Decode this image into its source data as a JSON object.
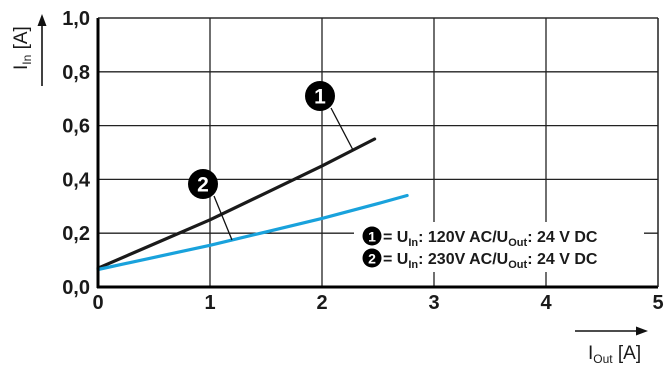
{
  "chart_data": {
    "type": "line",
    "xlim": [
      0,
      5
    ],
    "ylim": [
      0,
      1.0
    ],
    "x_ticks": [
      0,
      1,
      2,
      3,
      4,
      5
    ],
    "x_tick_labels": [
      "0",
      "1",
      "2",
      "3",
      "4",
      "5"
    ],
    "y_ticks": [
      0,
      0.2,
      0.4,
      0.6,
      0.8,
      1.0
    ],
    "y_tick_labels": [
      "0,0",
      "0,2",
      "0,4",
      "0,6",
      "0,8",
      "1,0"
    ],
    "grid": true,
    "xlabel": {
      "main": "I",
      "sub": "Out",
      "unit": " [A]"
    },
    "ylabel": {
      "main": "I",
      "sub": "In",
      "unit": " [A]"
    },
    "series": [
      {
        "marker": "1",
        "color": "#1a1a1a",
        "x": [
          0,
          0.5,
          1.0,
          1.5,
          2.0,
          2.47
        ],
        "y": [
          0.07,
          0.16,
          0.25,
          0.35,
          0.45,
          0.55
        ]
      },
      {
        "marker": "2",
        "color": "#19a2dc",
        "x": [
          0,
          0.5,
          1.0,
          1.5,
          2.0,
          2.5,
          2.76
        ],
        "y": [
          0.065,
          0.11,
          0.155,
          0.205,
          0.255,
          0.31,
          0.34
        ]
      }
    ],
    "legend": {
      "placement": "bottom-right",
      "entries": [
        {
          "marker": "1",
          "parts": [
            "= U",
            "In",
            ": 120V AC/U",
            "Out",
            ": 24 V DC"
          ]
        },
        {
          "marker": "2",
          "parts": [
            "= U",
            "In",
            ": 230V AC/U",
            "Out",
            ": 24 V DC"
          ]
        }
      ]
    }
  }
}
